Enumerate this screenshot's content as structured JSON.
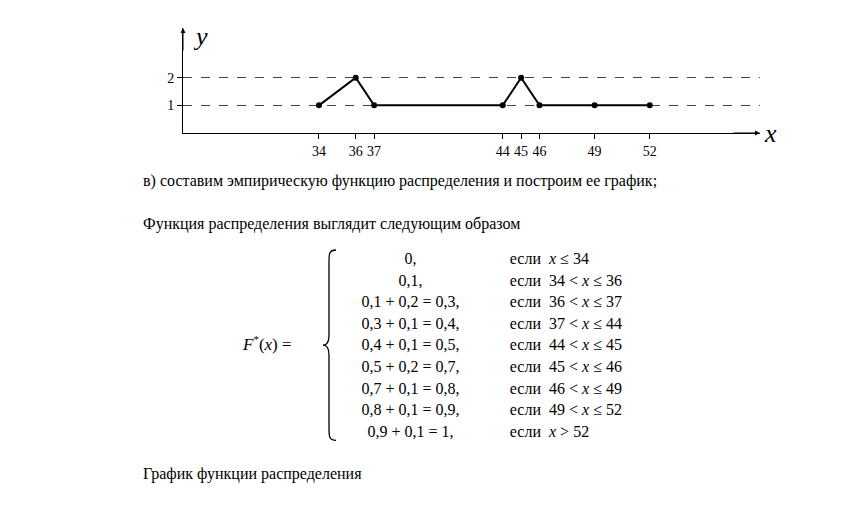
{
  "chart_data": {
    "type": "line",
    "x": [
      34,
      36,
      37,
      44,
      45,
      46,
      49,
      52
    ],
    "values": [
      1,
      2,
      1,
      1,
      2,
      1,
      1,
      1
    ],
    "color": "#000000",
    "marker": "circle",
    "xlim": [
      26.6,
      58
    ],
    "xticks": [
      34,
      36,
      37,
      44,
      45,
      46,
      49,
      52
    ],
    "ylim": [
      0,
      3.8
    ],
    "yticks": [
      1,
      2
    ],
    "grid": true,
    "xlabel": "x",
    "ylabel": "y"
  },
  "document": {
    "paragraphs": [
      "в) составим эмпирическую функцию распределения и построим ее график;",
      "Функция распределения выглядит следующим образом"
    ],
    "formula": {
      "lhs": [
        "F",
        "*",
        "(x)",
        "="
      ],
      "cases": [
        {
          "value": "0,",
          "word": "если",
          "condition": "x ≤ 34"
        },
        {
          "value": "0,1,",
          "word": "если",
          "condition": "34 < x ≤ 36"
        },
        {
          "value": "0,1 + 0,2 = 0,3,",
          "word": "если",
          "condition": "36 < x ≤ 37"
        },
        {
          "value": "0,3 + 0,1 = 0,4,",
          "word": "если",
          "condition": "37 < x ≤ 44"
        },
        {
          "value": "0,4 + 0,1 = 0,5,",
          "word": "если",
          "condition": "44 < x ≤ 45"
        },
        {
          "value": "0,5 + 0,2 = 0,7,",
          "word": "если",
          "condition": "45 < x ≤ 46"
        },
        {
          "value": "0,7 + 0,1 = 0,8,",
          "word": "если",
          "condition": "46 < x ≤ 49"
        },
        {
          "value": "0,8 + 0,1 = 0,9,",
          "word": "если",
          "condition": "49 < x ≤ 52"
        },
        {
          "value": "0,9 + 0,1  = 1,",
          "word": "если",
          "condition": "x > 52"
        }
      ]
    },
    "caption": "График функции распределения"
  }
}
